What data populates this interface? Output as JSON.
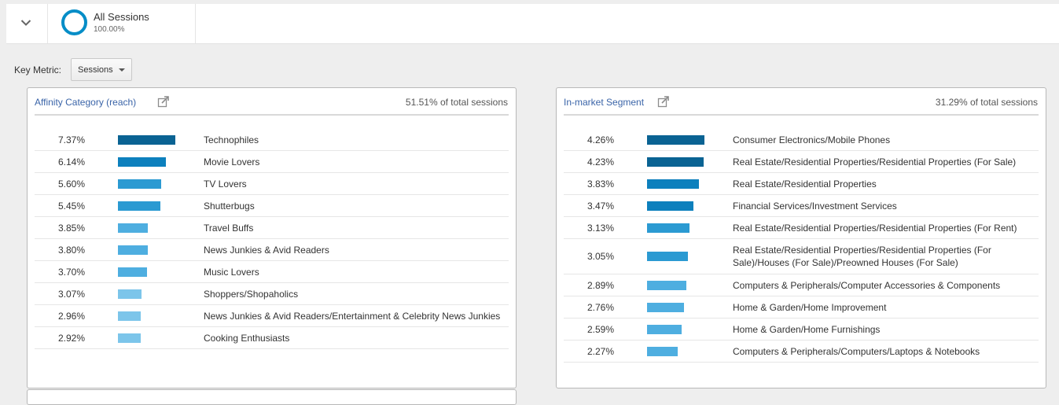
{
  "segment": {
    "name": "All Sessions",
    "percent": "100.00%"
  },
  "key_metric": {
    "label": "Key Metric:",
    "selected": "Sessions"
  },
  "colors": {
    "accent": "#058dc7",
    "bar_shades": [
      "#0a6393",
      "#0d80bd",
      "#2b9ad2",
      "#4eaee0",
      "#7cc5ea"
    ],
    "link": "#3a64a8"
  },
  "panels": [
    {
      "title": "Affinity Category (reach)",
      "subtitle": "51.51% of total sessions",
      "icon": "open-report-icon",
      "rows": [
        {
          "value": "7.37%",
          "pct": 7.37,
          "label": "Technophiles"
        },
        {
          "value": "6.14%",
          "pct": 6.14,
          "label": "Movie Lovers"
        },
        {
          "value": "5.60%",
          "pct": 5.6,
          "label": "TV Lovers"
        },
        {
          "value": "5.45%",
          "pct": 5.45,
          "label": "Shutterbugs"
        },
        {
          "value": "3.85%",
          "pct": 3.85,
          "label": "Travel Buffs"
        },
        {
          "value": "3.80%",
          "pct": 3.8,
          "label": "News Junkies & Avid Readers"
        },
        {
          "value": "3.70%",
          "pct": 3.7,
          "label": "Music Lovers"
        },
        {
          "value": "3.07%",
          "pct": 3.07,
          "label": "Shoppers/Shopaholics"
        },
        {
          "value": "2.96%",
          "pct": 2.96,
          "label": "News Junkies & Avid Readers/Entertainment & Celebrity News Junkies"
        },
        {
          "value": "2.92%",
          "pct": 2.92,
          "label": "Cooking Enthusiasts"
        }
      ]
    },
    {
      "title": "In-market Segment",
      "subtitle": "31.29% of total sessions",
      "icon": "open-report-icon",
      "rows": [
        {
          "value": "4.26%",
          "pct": 4.26,
          "label": "Consumer Electronics/Mobile Phones"
        },
        {
          "value": "4.23%",
          "pct": 4.23,
          "label": "Real Estate/Residential Properties/Residential Properties (For Sale)"
        },
        {
          "value": "3.83%",
          "pct": 3.83,
          "label": "Real Estate/Residential Properties"
        },
        {
          "value": "3.47%",
          "pct": 3.47,
          "label": "Financial Services/Investment Services"
        },
        {
          "value": "3.13%",
          "pct": 3.13,
          "label": "Real Estate/Residential Properties/Residential Properties (For Rent)"
        },
        {
          "value": "3.05%",
          "pct": 3.05,
          "label": "Real Estate/Residential Properties/Residential Properties (For Sale)/Houses (For Sale)/Preowned Houses (For Sale)"
        },
        {
          "value": "2.89%",
          "pct": 2.89,
          "label": "Computers & Peripherals/Computer Accessories & Components"
        },
        {
          "value": "2.76%",
          "pct": 2.76,
          "label": "Home & Garden/Home Improvement"
        },
        {
          "value": "2.59%",
          "pct": 2.59,
          "label": "Home & Garden/Home Furnishings"
        },
        {
          "value": "2.27%",
          "pct": 2.27,
          "label": "Computers & Peripherals/Computers/Laptops & Notebooks"
        }
      ]
    }
  ]
}
